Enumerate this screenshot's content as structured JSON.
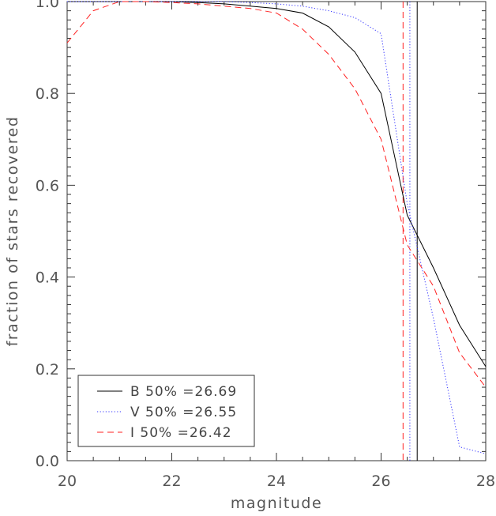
{
  "chart_data": {
    "type": "line",
    "title": "",
    "xlabel": "magnitude",
    "ylabel": "fraction of stars recovered",
    "xlim": [
      20,
      28
    ],
    "ylim": [
      0.0,
      1.0
    ],
    "xticks": [
      20,
      22,
      24,
      26,
      28
    ],
    "yticks": [
      0.0,
      0.2,
      0.4,
      0.6,
      0.8,
      1.0
    ],
    "x_tick_labels": [
      "20",
      "22",
      "24",
      "26",
      "28"
    ],
    "y_tick_labels": [
      "0.0",
      "0.2",
      "0.4",
      "0.6",
      "0.8",
      "1.0"
    ],
    "legend_position": "bottom-left",
    "series": [
      {
        "name": "B 50% =26.69",
        "color": "#000000",
        "dash": "solid",
        "x": [
          20.0,
          20.5,
          21.0,
          21.5,
          22.0,
          22.5,
          23.0,
          23.5,
          24.0,
          24.5,
          25.0,
          25.5,
          26.0,
          26.5,
          27.0,
          27.5,
          28.0
        ],
        "y": [
          1.0,
          1.0,
          1.0,
          1.0,
          1.0,
          0.998,
          0.995,
          0.99,
          0.985,
          0.975,
          0.945,
          0.89,
          0.8,
          0.535,
          0.42,
          0.295,
          0.205
        ],
        "fifty_pct": 26.69
      },
      {
        "name": "V 50% =26.55",
        "color": "#3333ff",
        "dash": "dotted",
        "x": [
          20.0,
          20.5,
          21.0,
          21.5,
          22.0,
          22.5,
          23.0,
          23.5,
          24.0,
          24.5,
          25.0,
          25.5,
          26.0,
          26.5,
          27.0,
          27.5,
          28.0
        ],
        "y": [
          1.0,
          1.0,
          1.0,
          1.0,
          1.0,
          1.0,
          1.0,
          0.998,
          0.995,
          0.99,
          0.98,
          0.965,
          0.93,
          0.56,
          0.31,
          0.03,
          0.015
        ],
        "fifty_pct": 26.55
      },
      {
        "name": "I 50% =26.42",
        "color": "#ff2222",
        "dash": "dashed",
        "x": [
          20.0,
          20.5,
          21.0,
          21.5,
          22.0,
          22.5,
          23.0,
          23.5,
          24.0,
          24.5,
          25.0,
          25.5,
          26.0,
          26.5,
          27.0,
          27.5,
          28.0
        ],
        "y": [
          0.91,
          0.98,
          1.0,
          1.0,
          0.998,
          0.995,
          0.99,
          0.985,
          0.975,
          0.94,
          0.885,
          0.81,
          0.7,
          0.47,
          0.38,
          0.235,
          0.16
        ],
        "fifty_pct": 26.42
      }
    ]
  }
}
